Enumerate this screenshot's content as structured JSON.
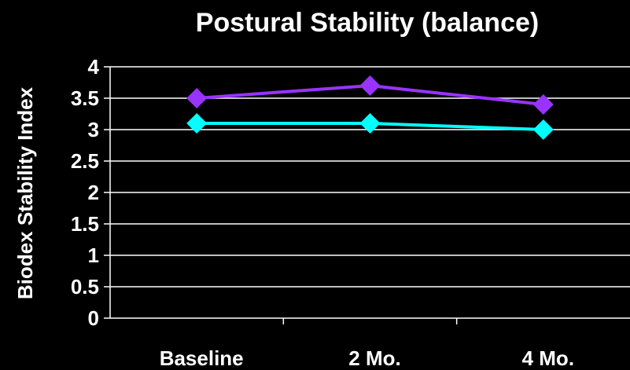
{
  "chart_data": {
    "type": "line",
    "title": "Postural Stability (balance)",
    "xlabel": "",
    "ylabel": "Biodex Stability Index",
    "categories": [
      "Baseline",
      "2 Mo.",
      "4 Mo."
    ],
    "ylim": [
      0,
      4
    ],
    "yticks": [
      "0",
      "0.5",
      "1",
      "1.5",
      "2",
      "2.5",
      "3",
      "3.5",
      "4"
    ],
    "grid": true,
    "legend": "none",
    "series": [
      {
        "values": [
          3.5,
          3.7,
          3.4
        ],
        "color": "#9933ff",
        "marker": "diamond"
      },
      {
        "values": [
          3.1,
          3.1,
          3.0
        ],
        "color": "#00ffff",
        "marker": "diamond"
      }
    ],
    "colors": {
      "background": "#000000",
      "text": "#ffffff",
      "grid": "#ffffff"
    }
  }
}
